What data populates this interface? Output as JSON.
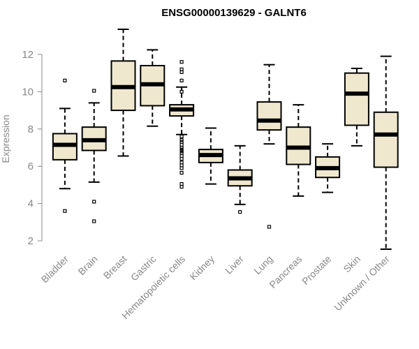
{
  "chart_data": {
    "type": "boxplot",
    "title": "ENSG00000139629 - GALNT6",
    "xlabel": "",
    "ylabel": "Expression",
    "ylim": [
      1.5,
      13.5
    ],
    "yticks": [
      2,
      4,
      6,
      8,
      10,
      12
    ],
    "box_color": "#efe8cf",
    "categories": [
      "Bladder",
      "Brain",
      "Breast",
      "Gastric",
      "Hematopoietic cells",
      "Kidney",
      "Liver",
      "Lung",
      "Pancreas",
      "Prostate",
      "Skin",
      "Unknown / Other"
    ],
    "boxes": [
      {
        "whisker_low": 4.8,
        "q1": 6.35,
        "median": 7.15,
        "q3": 7.75,
        "whisker_high": 9.1,
        "outliers": [
          3.6,
          10.6
        ]
      },
      {
        "whisker_low": 5.15,
        "q1": 6.85,
        "median": 7.4,
        "q3": 8.1,
        "whisker_high": 9.4,
        "outliers": [
          3.05,
          4.1,
          10.05
        ]
      },
      {
        "whisker_low": 6.55,
        "q1": 9.0,
        "median": 10.25,
        "q3": 11.65,
        "whisker_high": 13.35,
        "outliers": []
      },
      {
        "whisker_low": 8.15,
        "q1": 9.25,
        "median": 10.4,
        "q3": 11.4,
        "whisker_high": 12.25,
        "outliers": []
      },
      {
        "whisker_low": 7.7,
        "q1": 8.7,
        "median": 9.05,
        "q3": 9.3,
        "whisker_high": 10.25,
        "outliers": [
          11.6,
          11.2,
          11.05,
          10.6,
          10.0,
          7.6,
          7.4,
          7.3,
          7.15,
          7.0,
          6.9,
          6.8,
          6.7,
          6.55,
          6.4,
          6.2,
          6.05,
          5.9,
          5.65,
          5.05,
          4.9
        ]
      },
      {
        "whisker_low": 5.05,
        "q1": 6.2,
        "median": 6.6,
        "q3": 6.9,
        "whisker_high": 8.05,
        "outliers": []
      },
      {
        "whisker_low": 3.95,
        "q1": 4.95,
        "median": 5.35,
        "q3": 5.8,
        "whisker_high": 7.1,
        "outliers": [
          3.55
        ]
      },
      {
        "whisker_low": 7.2,
        "q1": 7.95,
        "median": 8.45,
        "q3": 9.45,
        "whisker_high": 11.45,
        "outliers": [
          2.75
        ]
      },
      {
        "whisker_low": 4.4,
        "q1": 6.1,
        "median": 7.0,
        "q3": 8.1,
        "whisker_high": 9.3,
        "outliers": []
      },
      {
        "whisker_low": 4.6,
        "q1": 5.4,
        "median": 5.9,
        "q3": 6.5,
        "whisker_high": 7.2,
        "outliers": []
      },
      {
        "whisker_low": 7.1,
        "q1": 8.2,
        "median": 9.9,
        "q3": 11.0,
        "whisker_high": 11.25,
        "outliers": []
      },
      {
        "whisker_low": 1.55,
        "q1": 5.95,
        "median": 7.7,
        "q3": 8.9,
        "whisker_high": 11.9,
        "outliers": []
      }
    ]
  }
}
